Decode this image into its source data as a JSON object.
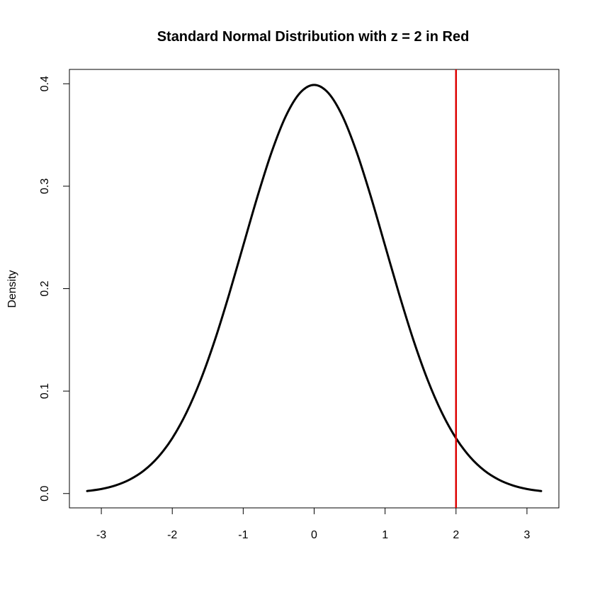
{
  "chart_data": {
    "type": "line",
    "title": "Standard Normal Distribution with z = 2 in Red",
    "xlabel": "",
    "ylabel": "Density",
    "xlim": [
      -3.45,
      3.45
    ],
    "ylim": [
      -0.014,
      0.414
    ],
    "x_ticks": [
      -3,
      -2,
      -1,
      0,
      1,
      2,
      3
    ],
    "x_tick_labels": [
      "-3",
      "-2",
      "-1",
      "0",
      "1",
      "2",
      "3"
    ],
    "y_ticks": [
      0.0,
      0.1,
      0.2,
      0.3,
      0.4
    ],
    "y_tick_labels": [
      "0.0",
      "0.1",
      "0.2",
      "0.3",
      "0.4"
    ],
    "grid": false,
    "series": [
      {
        "color": "#000000",
        "x": [
          -3.2,
          -3.0,
          -2.8,
          -2.6,
          -2.4,
          -2.2,
          -2.0,
          -1.8,
          -1.6,
          -1.4,
          -1.2,
          -1.0,
          -0.8,
          -0.6,
          -0.4,
          -0.2,
          0.0,
          0.2,
          0.4,
          0.6,
          0.8,
          1.0,
          1.2,
          1.4,
          1.6,
          1.8,
          2.0,
          2.2,
          2.4,
          2.6,
          2.8,
          3.0,
          3.2
        ],
        "y": [
          0.0024,
          0.0044,
          0.0079,
          0.0136,
          0.0224,
          0.0355,
          0.054,
          0.079,
          0.1109,
          0.1497,
          0.1942,
          0.242,
          0.2897,
          0.3332,
          0.3683,
          0.391,
          0.3989,
          0.391,
          0.3683,
          0.3332,
          0.2897,
          0.242,
          0.1942,
          0.1497,
          0.1109,
          0.079,
          0.054,
          0.0355,
          0.0224,
          0.0136,
          0.0079,
          0.0044,
          0.0024
        ]
      }
    ],
    "vlines": [
      {
        "x": 2,
        "color": "#dd0000"
      }
    ]
  }
}
